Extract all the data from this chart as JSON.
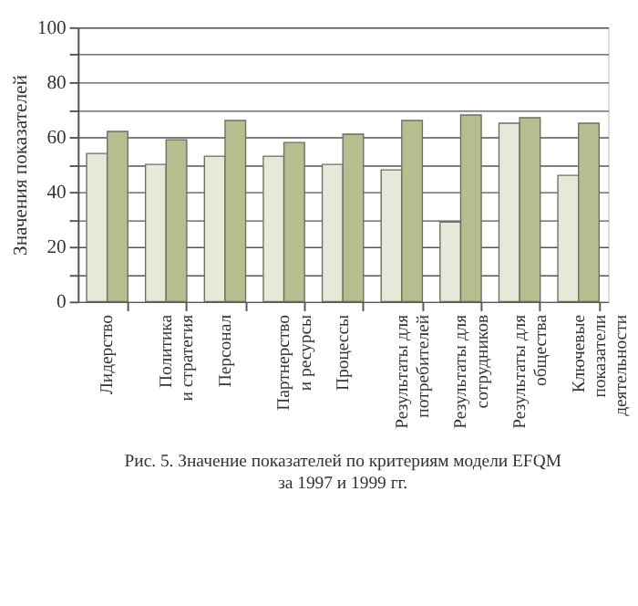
{
  "chart_data": {
    "type": "bar",
    "title": "Рис. 5. Значение показателей по критериям модели EFQM\nза 1997 и 1999 гг.",
    "ylabel": "Значения показателей",
    "categories": [
      "Лидерство",
      "Политика\nи стратегия",
      "Персонал",
      "Партнерство\nи ресурсы",
      "Процессы",
      "Результаты для\nпотребителей",
      "Результаты для\nсотрудников",
      "Результаты для\nобщества",
      "Ключевые\nпоказатели\nдеятельности"
    ],
    "series": [
      {
        "color": "#e6e8d8",
        "values": [
          54,
          50,
          53,
          53,
          50,
          48,
          29,
          65,
          46
        ]
      },
      {
        "color": "#b5be8f",
        "values": [
          62,
          59,
          66,
          58,
          61,
          66,
          68,
          67,
          65
        ]
      }
    ],
    "ylim": [
      0,
      100
    ],
    "yticks": [
      0,
      {
        "value": 10,
        "label": null
      },
      20,
      {
        "value": 30,
        "label": null
      },
      40,
      {
        "value": 50,
        "label": null
      },
      60,
      {
        "value": 70,
        "label": null
      },
      80,
      {
        "value": 90,
        "label": null
      },
      100
    ],
    "grid": "y",
    "legend": false
  }
}
